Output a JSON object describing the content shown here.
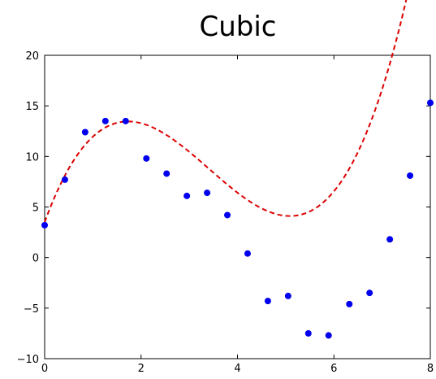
{
  "chart_data": {
    "type": "scatter",
    "title": "Cubic",
    "xlabel": "",
    "ylabel": "",
    "xlim": [
      0,
      8
    ],
    "ylim": [
      -10,
      20
    ],
    "xticks": [
      0,
      2,
      4,
      6,
      8
    ],
    "yticks": [
      -10,
      -5,
      0,
      5,
      10,
      15,
      20
    ],
    "xtick_labels": [
      "0",
      "2",
      "4",
      "6",
      "8"
    ],
    "ytick_labels": [
      "−10",
      "−5",
      "0",
      "5",
      "10",
      "15",
      "20"
    ],
    "grid": false,
    "series": [
      {
        "kind": "points",
        "color": "#0000ee",
        "x": [
          0.0,
          0.42,
          0.84,
          1.26,
          1.68,
          2.11,
          2.53,
          2.95,
          3.37,
          3.79,
          4.21,
          4.63,
          5.05,
          5.47,
          5.89,
          6.32,
          6.74,
          7.16,
          7.58,
          8.0
        ],
        "y": [
          3.2,
          7.7,
          12.4,
          13.5,
          13.5,
          9.8,
          8.3,
          6.1,
          6.4,
          4.2,
          0.4,
          -4.3,
          -3.8,
          -7.5,
          -7.7,
          -4.6,
          -3.5,
          1.8,
          8.1,
          15.3
        ]
      },
      {
        "kind": "line",
        "color": "#dd0000",
        "style": "dashed",
        "cubic_coefficients": [
          0.493,
          -5.04,
          13.0,
          3.5
        ]
      }
    ]
  }
}
